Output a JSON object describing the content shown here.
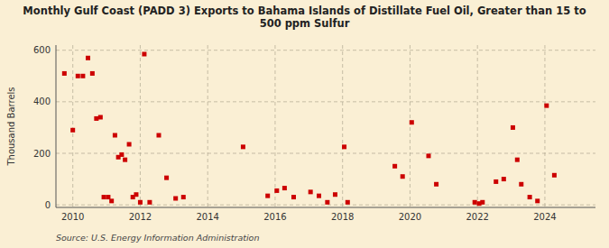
{
  "chart_data": {
    "type": "scatter",
    "title": "Monthly Gulf Coast (PADD 3) Exports to Bahama Islands of Distillate Fuel Oil, Greater than 15 to\n500 ppm Sulfur",
    "ylabel": "Thousand Barrels",
    "source": "Source: U.S. Energy Information Administration",
    "color": "#cc0000",
    "marker": "square",
    "grid": true,
    "xlim": [
      2009.5,
      2025.5
    ],
    "ylim": [
      -10,
      620
    ],
    "xticks": [
      2010,
      2012,
      2014,
      2016,
      2018,
      2020,
      2022,
      2024
    ],
    "yticks": [
      0,
      200,
      400,
      600
    ],
    "x": [
      2009.75,
      2010.0,
      2010.15,
      2010.3,
      2010.45,
      2010.58,
      2010.7,
      2010.82,
      2010.92,
      2011.05,
      2011.15,
      2011.25,
      2011.35,
      2011.45,
      2011.55,
      2011.67,
      2011.78,
      2011.88,
      2012.0,
      2012.12,
      2012.28,
      2012.55,
      2012.78,
      2013.05,
      2013.28,
      2015.05,
      2015.78,
      2016.05,
      2016.28,
      2016.55,
      2017.05,
      2017.3,
      2017.55,
      2017.78,
      2018.05,
      2018.15,
      2019.55,
      2019.78,
      2020.05,
      2020.55,
      2020.78,
      2021.92,
      2022.05,
      2022.15,
      2022.55,
      2022.78,
      2023.05,
      2023.18,
      2023.3,
      2023.55,
      2023.78,
      2024.05,
      2024.28
    ],
    "values": [
      510,
      290,
      500,
      500,
      570,
      510,
      335,
      340,
      30,
      30,
      15,
      270,
      185,
      195,
      175,
      235,
      30,
      40,
      10,
      585,
      10,
      270,
      105,
      25,
      30,
      225,
      35,
      55,
      65,
      30,
      50,
      35,
      10,
      40,
      225,
      10,
      150,
      110,
      320,
      190,
      80,
      10,
      5,
      10,
      90,
      100,
      300,
      175,
      80,
      30,
      15,
      385,
      115
    ]
  }
}
